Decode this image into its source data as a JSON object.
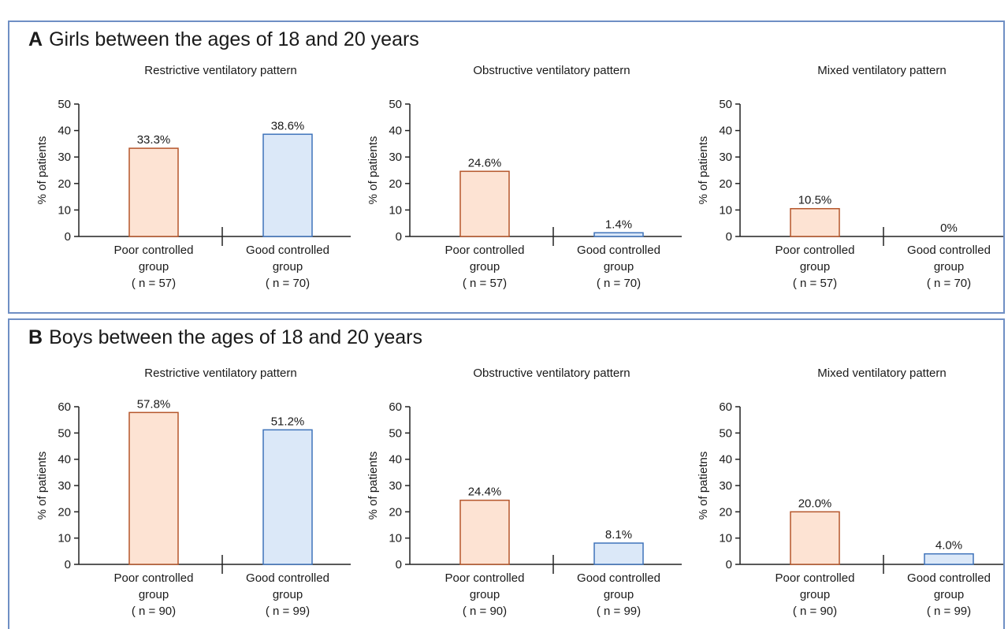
{
  "colors": {
    "poor_fill": "#fde3d3",
    "poor_stroke": "#b5562b",
    "good_fill": "#dbe8f8",
    "good_stroke": "#3f73ba",
    "border": "#6f8fc4"
  },
  "panels": [
    {
      "letter": "A",
      "title": "Girls between the ages of 18 and 20 years",
      "charts": [
        {
          "subtitle": "Restrictive ventilatory pattern",
          "ylabel": "% of patients",
          "ymax": 50,
          "ticks": [
            "0",
            "10",
            "20",
            "30",
            "40",
            "50"
          ],
          "bars": [
            {
              "values": 33.3,
              "label": "33.3%",
              "cat": [
                "Poor controlled",
                "group",
                "( n = 57)"
              ]
            },
            {
              "values": 38.6,
              "label": "38.6%",
              "cat": [
                "Good controlled",
                "group",
                "( n = 70)"
              ]
            }
          ]
        },
        {
          "subtitle": "Obstructive ventilatory pattern",
          "ylabel": "% of patients",
          "ymax": 50,
          "ticks": [
            "0",
            "10",
            "20",
            "30",
            "40",
            "50"
          ],
          "bars": [
            {
              "values": 24.6,
              "label": "24.6%",
              "cat": [
                "Poor controlled",
                "group",
                "( n = 57)"
              ]
            },
            {
              "values": 1.4,
              "label": "1.4%",
              "cat": [
                "Good controlled",
                "group",
                "( n = 70)"
              ]
            }
          ]
        },
        {
          "subtitle": "Mixed ventilatory pattern",
          "ylabel": "% of patients",
          "ymax": 50,
          "ticks": [
            "0",
            "10",
            "20",
            "30",
            "40",
            "50"
          ],
          "bars": [
            {
              "values": 10.5,
              "label": "10.5%",
              "cat": [
                "Poor controlled",
                "group",
                "( n = 57)"
              ]
            },
            {
              "values": 0,
              "label": "0%",
              "cat": [
                "Good controlled",
                "group",
                "( n = 70)"
              ]
            }
          ]
        }
      ]
    },
    {
      "letter": "B",
      "title": "Boys between the ages of 18 and 20 years",
      "charts": [
        {
          "subtitle": "Restrictive ventilatory pattern",
          "ylabel": "% of patients",
          "ymax": 60,
          "ticks": [
            "0",
            "10",
            "20",
            "30",
            "40",
            "50",
            "60"
          ],
          "bars": [
            {
              "values": 57.8,
              "label": "57.8%",
              "cat": [
                "Poor controlled",
                "group",
                "( n = 90)"
              ]
            },
            {
              "values": 51.2,
              "label": "51.2%",
              "cat": [
                "Good controlled",
                "group",
                "( n = 99)"
              ]
            }
          ]
        },
        {
          "subtitle": "Obstructive ventilatory pattern",
          "ylabel": "% of patients",
          "ymax": 60,
          "ticks": [
            "0",
            "10",
            "20",
            "30",
            "40",
            "50",
            "60"
          ],
          "bars": [
            {
              "values": 24.4,
              "label": "24.4%",
              "cat": [
                "Poor controlled",
                "group",
                "( n = 90)"
              ]
            },
            {
              "values": 8.1,
              "label": "8.1%",
              "cat": [
                "Good controlled",
                "group",
                "( n = 99)"
              ]
            }
          ]
        },
        {
          "subtitle": "Mixed ventilatory pattern",
          "ylabel": "% of patietns",
          "ymax": 60,
          "ticks": [
            "0",
            "10",
            "20",
            "30",
            "40",
            "50",
            "60"
          ],
          "bars": [
            {
              "values": 20.0,
              "label": "20.0%",
              "cat": [
                "Poor controlled",
                "group",
                "( n = 90)"
              ]
            },
            {
              "values": 4.0,
              "label": "4.0%",
              "cat": [
                "Good controlled",
                "group",
                "( n = 99)"
              ]
            }
          ]
        }
      ]
    }
  ],
  "chart_data": [
    {
      "type": "bar",
      "title": "Restrictive ventilatory pattern",
      "ylabel": "% of patients",
      "ylim": [
        0,
        50
      ],
      "categories": [
        "Poor controlled group ( n = 57)",
        "Good controlled group ( n = 70)"
      ],
      "values": [
        33.3,
        38.6
      ]
    },
    {
      "type": "bar",
      "title": "Obstructive ventilatory pattern",
      "ylabel": "% of patients",
      "ylim": [
        0,
        50
      ],
      "categories": [
        "Poor controlled group ( n = 57)",
        "Good controlled group ( n = 70)"
      ],
      "values": [
        24.6,
        1.4
      ]
    },
    {
      "type": "bar",
      "title": "Mixed ventilatory pattern",
      "ylabel": "% of patients",
      "ylim": [
        0,
        50
      ],
      "categories": [
        "Poor controlled group ( n = 57)",
        "Good controlled group ( n = 70)"
      ],
      "values": [
        10.5,
        0
      ]
    },
    {
      "type": "bar",
      "title": "Restrictive ventilatory pattern",
      "ylabel": "% of patients",
      "ylim": [
        0,
        60
      ],
      "categories": [
        "Poor controlled group ( n = 90)",
        "Good controlled group ( n = 99)"
      ],
      "values": [
        57.8,
        51.2
      ]
    },
    {
      "type": "bar",
      "title": "Obstructive ventilatory pattern",
      "ylabel": "% of patients",
      "ylim": [
        0,
        60
      ],
      "categories": [
        "Poor controlled group ( n = 90)",
        "Good controlled group ( n = 99)"
      ],
      "values": [
        24.4,
        8.1
      ]
    },
    {
      "type": "bar",
      "title": "Mixed ventilatory pattern",
      "ylabel": "% of patietns",
      "ylim": [
        0,
        60
      ],
      "categories": [
        "Poor controlled group ( n = 90)",
        "Good controlled group ( n = 99)"
      ],
      "values": [
        20.0,
        4.0
      ]
    }
  ]
}
